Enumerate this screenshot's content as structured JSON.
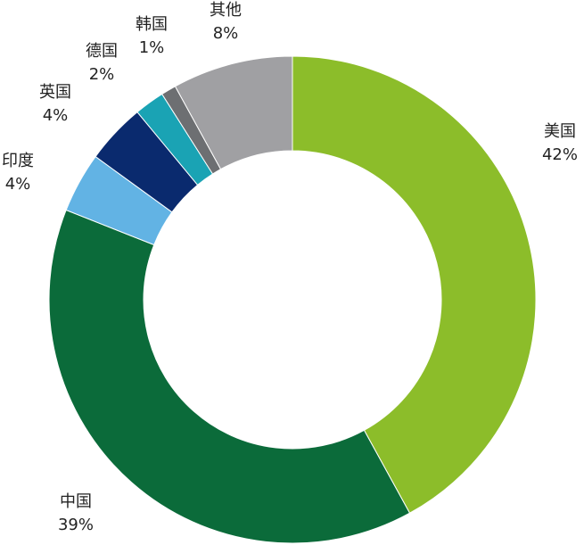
{
  "chart_data": {
    "type": "donut",
    "categories": [
      "美国",
      "中国",
      "印度",
      "英国",
      "德国",
      "韩国",
      "其他"
    ],
    "values": [
      42,
      39,
      4,
      4,
      2,
      1,
      8
    ],
    "value_labels": [
      "42%",
      "39%",
      "4%",
      "4%",
      "2%",
      "1%",
      "8%"
    ],
    "colors": [
      "#8cbd2a",
      "#0b6b3a",
      "#62b3e4",
      "#0a2a6e",
      "#1aa3b4",
      "#6d6f72",
      "#a0a0a3"
    ]
  }
}
